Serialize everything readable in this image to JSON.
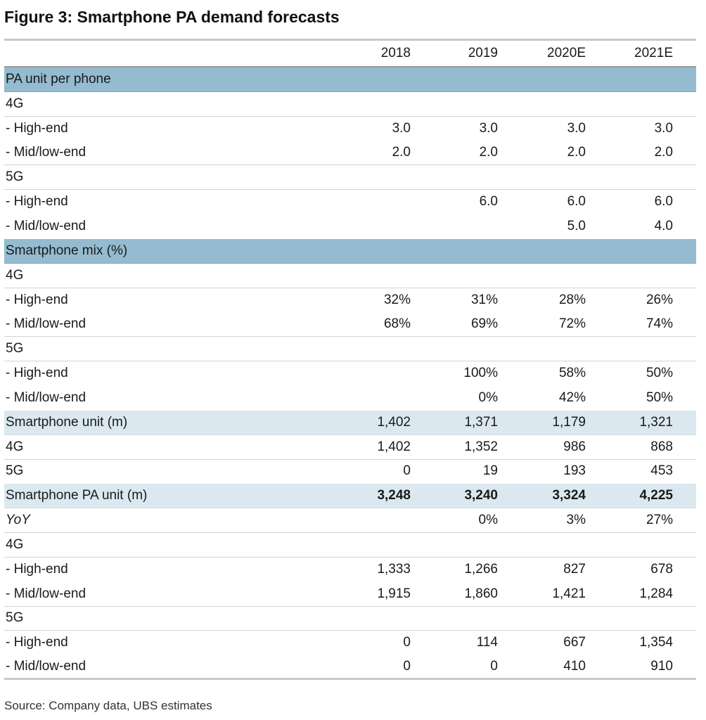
{
  "title": "Figure 3: Smartphone PA demand forecasts",
  "columns": [
    "2018",
    "2019",
    "2020E",
    "2021E"
  ],
  "rows": [
    {
      "label": "PA unit per phone",
      "type": "section",
      "values": [
        "",
        "",
        "",
        ""
      ]
    },
    {
      "label": "4G",
      "type": "sub",
      "values": [
        "",
        "",
        "",
        ""
      ]
    },
    {
      "label": "- High-end",
      "type": "item",
      "values": [
        "3.0",
        "3.0",
        "3.0",
        "3.0"
      ]
    },
    {
      "label": "- Mid/low-end",
      "type": "item",
      "values": [
        "2.0",
        "2.0",
        "2.0",
        "2.0"
      ]
    },
    {
      "label": "5G",
      "type": "sub",
      "values": [
        "",
        "",
        "",
        ""
      ]
    },
    {
      "label": "- High-end",
      "type": "item",
      "values": [
        "",
        "6.0",
        "6.0",
        "6.0"
      ]
    },
    {
      "label": "- Mid/low-end",
      "type": "item",
      "values": [
        "",
        "",
        "5.0",
        "4.0"
      ]
    },
    {
      "label": "Smartphone mix (%)",
      "type": "section",
      "values": [
        "",
        "",
        "",
        ""
      ]
    },
    {
      "label": "4G",
      "type": "sub",
      "values": [
        "",
        "",
        "",
        ""
      ]
    },
    {
      "label": "- High-end",
      "type": "item",
      "values": [
        "32%",
        "31%",
        "28%",
        "26%"
      ]
    },
    {
      "label": "- Mid/low-end",
      "type": "item",
      "values": [
        "68%",
        "69%",
        "72%",
        "74%"
      ]
    },
    {
      "label": "5G",
      "type": "sub",
      "values": [
        "",
        "",
        "",
        ""
      ]
    },
    {
      "label": "- High-end",
      "type": "item",
      "values": [
        "",
        "100%",
        "58%",
        "50%"
      ]
    },
    {
      "label": "- Mid/low-end",
      "type": "item",
      "values": [
        "",
        "0%",
        "42%",
        "50%"
      ]
    },
    {
      "label": "Smartphone unit (m)",
      "type": "highlight",
      "values": [
        "1,402",
        "1,371",
        "1,179",
        "1,321"
      ]
    },
    {
      "label": "4G",
      "type": "item",
      "values": [
        "1,402",
        "1,352",
        "986",
        "868"
      ]
    },
    {
      "label": "5G",
      "type": "item",
      "values": [
        "0",
        "19",
        "193",
        "453"
      ]
    },
    {
      "label": "Smartphone PA unit (m)",
      "type": "highlight-bold",
      "values": [
        "3,248",
        "3,240",
        "3,324",
        "4,225"
      ]
    },
    {
      "label": "YoY",
      "type": "italic",
      "values": [
        "",
        "0%",
        "3%",
        "27%"
      ]
    },
    {
      "label": "4G",
      "type": "sub",
      "values": [
        "",
        "",
        "",
        ""
      ]
    },
    {
      "label": "- High-end",
      "type": "item",
      "values": [
        "1,333",
        "1,266",
        "827",
        "678"
      ]
    },
    {
      "label": "- Mid/low-end",
      "type": "item",
      "values": [
        "1,915",
        "1,860",
        "1,421",
        "1,284"
      ]
    },
    {
      "label": "5G",
      "type": "sub",
      "values": [
        "",
        "",
        "",
        ""
      ]
    },
    {
      "label": "- High-end",
      "type": "item",
      "values": [
        "0",
        "114",
        "667",
        "1,354"
      ]
    },
    {
      "label": "- Mid/low-end",
      "type": "item",
      "values": [
        "0",
        "0",
        "410",
        "910"
      ]
    }
  ],
  "source": "Source: Company data, UBS estimates"
}
